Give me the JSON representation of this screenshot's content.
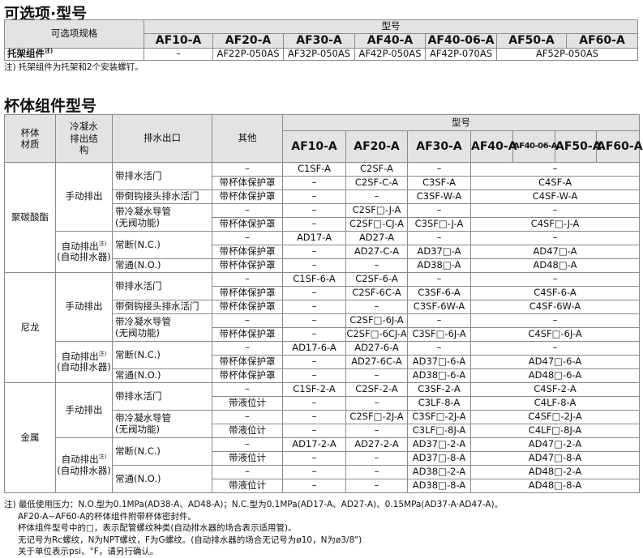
{
  "options": {
    "title": "可选项·型号",
    "spec_header": "可选项规格",
    "model_header": "型号",
    "models": [
      "AF10-A",
      "AF20-A",
      "AF30-A",
      "AF40-A",
      "AF40-06-A",
      "AF50-A",
      "AF60-A"
    ],
    "row_label": "托架组件",
    "row_label_note": "注)",
    "values": [
      "–",
      "AF22P-050AS",
      "AF32P-050AS",
      "AF42P-050AS",
      "AF42P-070AS",
      "AF52P-050AS"
    ],
    "note": "注) 托架组件为托架和2个安装螺钉。"
  },
  "bowl": {
    "title": "杯体组件型号",
    "headers": {
      "material": "杯体材质",
      "drain_structure": "冷凝水排出结构",
      "drain_outlet": "排水出口",
      "other": "其他",
      "model": "型号"
    },
    "models": [
      "AF10-A",
      "AF20-A",
      "AF30-A",
      "AF40-A",
      "AF40-06-A",
      "AF50-A",
      "AF60-A"
    ],
    "rows": [
      [
        "聚碳酸酯",
        "手动排出",
        "带排水活门",
        "–",
        "C1SF-A",
        "C2SF-A",
        "–",
        "–"
      ],
      [
        "带杯体保护罩",
        "–",
        "C2SF-C-A",
        "C3SF-A",
        "C4SF-A"
      ],
      [
        "带倒钩接头排水活门",
        "带杯体保护罩",
        "–",
        "–",
        "C3SF-W-A",
        "C4SF-W-A"
      ],
      [
        "带冷凝水导管\n(无阀功能)",
        "–",
        "–",
        "C2SF□-J-A",
        "–",
        "–"
      ],
      [
        "带杯体保护罩",
        "–",
        "C2SF□-CJ-A",
        "C3SF□-J-A",
        "C4SF□-J-A"
      ],
      [
        "自动排出注)\n(自动排水器)",
        "常断(N.C.)",
        "–",
        "AD17-A",
        "AD27-A",
        "–",
        "–"
      ],
      [
        "带杯体保护罩",
        "–",
        "AD27-C-A",
        "AD37□-A",
        "AD47□-A"
      ],
      [
        "常通(N.O.)",
        "带杯体保护罩",
        "–",
        "–",
        "AD38□-A",
        "AD48□-A"
      ],
      [
        "尼龙",
        "手动排出",
        "带排水活门",
        "–",
        "C1SF-6-A",
        "C2SF-6-A",
        "–",
        "–"
      ],
      [
        "带杯体保护罩",
        "–",
        "C2SF-6C-A",
        "C3SF-6-A",
        "C4SF-6-A"
      ],
      [
        "带倒钩接头排水活门",
        "带杯体保护罩",
        "–",
        "–",
        "C3SF-6W-A",
        "C4SF-6W-A"
      ],
      [
        "带冷凝水导管\n(无阀功能)",
        "–",
        "–",
        "C2SF□-6J-A",
        "–",
        "–"
      ],
      [
        "带杯体保护罩",
        "–",
        "C2SF□-6CJ-A",
        "C3SF□-6J-A",
        "C4SF□-6J-A"
      ],
      [
        "自动排出注)\n(自动排水器)",
        "常断(N.C.)",
        "–",
        "AD17-6-A",
        "AD27-6-A",
        "–",
        "–"
      ],
      [
        "带杯体保护罩",
        "–",
        "AD27-6C-A",
        "AD37□-6-A",
        "AD47□-6-A"
      ],
      [
        "常通(N.O.)",
        "带杯体保护罩",
        "–",
        "–",
        "AD38□-6-A",
        "AD48□-6-A"
      ],
      [
        "金属",
        "手动排出",
        "带排水活门",
        "–",
        "C1SF-2-A",
        "C2SF-2-A",
        "C3SF-2-A",
        "C4SF-2-A"
      ],
      [
        "带液位计",
        "–",
        "–",
        "C3LF-8-A",
        "C4LF-8-A"
      ],
      [
        "带冷凝水导管\n(无阀功能)",
        "–",
        "–",
        "C2SF□-2J-A",
        "C3SF□-2J-A",
        "C4SF□-2J-A"
      ],
      [
        "带液位计",
        "–",
        "–",
        "C3LF□-8J-A",
        "C4LF□-8J-A"
      ],
      [
        "自动排出注)\n(自动排水器)",
        "常断(N.C.)",
        "–",
        "AD17-2-A",
        "AD27-2-A",
        "AD37□-2-A",
        "AD47□-2-A"
      ],
      [
        "带液位计",
        "–",
        "–",
        "AD37□-8-A",
        "AD47□-8-A"
      ],
      [
        "常通(N.O.)",
        "–",
        "–",
        "–",
        "AD38□-2-A",
        "AD48□-2-A"
      ],
      [
        "带液位计",
        "–",
        "–",
        "AD38□-8-A",
        "AD48□-8-A"
      ]
    ],
    "notes": [
      "注) 最低使用压力：N.O.型为0.1MPa(AD38-A、AD48-A)；N.C.型为0.1MPa(AD17-A、AD27-A)、0.15MPa(AD37-A·AD47-A)。",
      "AF20-A~AF60-A的杯体组件附带杯体密封件。",
      "杯体组件型号中的□，表示配管螺纹种类(自动排水器的场合表示适用管)。",
      "无记号为Rc螺纹，N为NPT螺纹，F为G螺纹。(自动排水器的场合无记号为ø10，N为ø3/8\")",
      "关于单位表示psi、°F，请另行确认。"
    ]
  }
}
